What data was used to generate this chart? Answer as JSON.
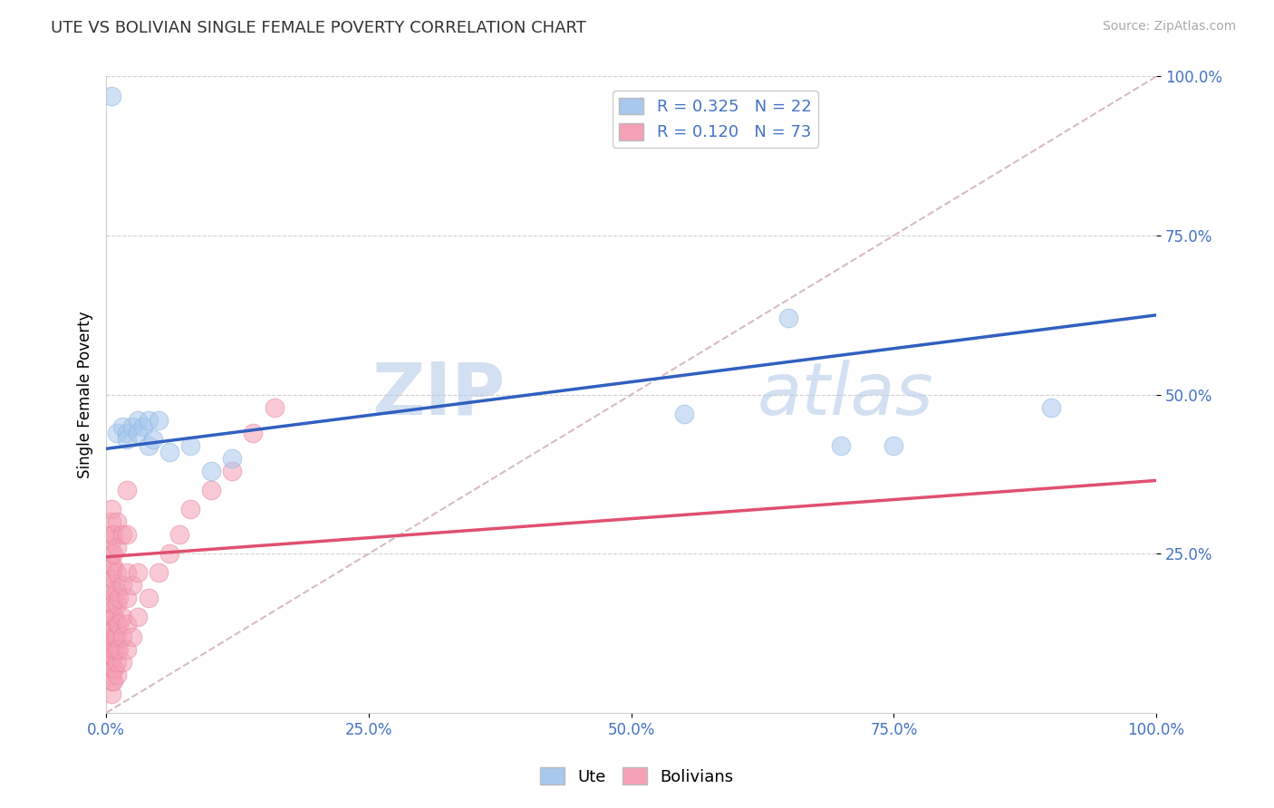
{
  "title": "UTE VS BOLIVIAN SINGLE FEMALE POVERTY CORRELATION CHART",
  "source_text": "Source: ZipAtlas.com",
  "ylabel": "Single Female Poverty",
  "watermark_zip": "ZIP",
  "watermark_atlas": "atlas",
  "xlim": [
    0.0,
    1.0
  ],
  "ylim": [
    0.0,
    1.0
  ],
  "xticks": [
    0.0,
    0.25,
    0.5,
    0.75,
    1.0
  ],
  "yticks": [
    0.25,
    0.5,
    0.75,
    1.0
  ],
  "xtick_labels": [
    "0.0%",
    "25.0%",
    "50.0%",
    "75.0%",
    "100.0%"
  ],
  "ytick_labels": [
    "25.0%",
    "50.0%",
    "75.0%",
    "100.0%"
  ],
  "ute_color": "#A8C8EE",
  "bolivian_color": "#F5A0B5",
  "ute_edge_color": "#90B8E0",
  "bolivian_edge_color": "#E888A0",
  "ute_line_color": "#3060C0",
  "bolivian_line_color": "#E05070",
  "diagonal_color": "#D0B0B8",
  "R_ute": 0.325,
  "N_ute": 22,
  "R_bolivian": 0.12,
  "N_bolivian": 73,
  "ute_x": [
    0.005,
    0.01,
    0.015,
    0.02,
    0.02,
    0.025,
    0.03,
    0.03,
    0.035,
    0.04,
    0.04,
    0.045,
    0.05,
    0.06,
    0.08,
    0.1,
    0.12,
    0.55,
    0.65,
    0.7,
    0.75,
    0.9
  ],
  "ute_y": [
    0.97,
    0.44,
    0.45,
    0.44,
    0.43,
    0.45,
    0.46,
    0.44,
    0.45,
    0.46,
    0.42,
    0.43,
    0.46,
    0.41,
    0.42,
    0.38,
    0.4,
    0.47,
    0.62,
    0.42,
    0.42,
    0.48
  ],
  "bolivian_x": [
    0.005,
    0.005,
    0.005,
    0.005,
    0.005,
    0.005,
    0.005,
    0.005,
    0.005,
    0.005,
    0.005,
    0.005,
    0.005,
    0.005,
    0.005,
    0.005,
    0.005,
    0.005,
    0.005,
    0.005,
    0.007,
    0.007,
    0.007,
    0.007,
    0.007,
    0.007,
    0.007,
    0.007,
    0.007,
    0.007,
    0.007,
    0.007,
    0.008,
    0.008,
    0.008,
    0.008,
    0.01,
    0.01,
    0.01,
    0.01,
    0.01,
    0.01,
    0.01,
    0.01,
    0.01,
    0.01,
    0.012,
    0.012,
    0.012,
    0.015,
    0.015,
    0.015,
    0.015,
    0.015,
    0.02,
    0.02,
    0.02,
    0.02,
    0.02,
    0.02,
    0.025,
    0.025,
    0.03,
    0.03,
    0.04,
    0.05,
    0.06,
    0.07,
    0.08,
    0.1,
    0.12,
    0.14,
    0.16
  ],
  "bolivian_y": [
    0.03,
    0.05,
    0.06,
    0.08,
    0.09,
    0.1,
    0.11,
    0.12,
    0.14,
    0.15,
    0.17,
    0.18,
    0.2,
    0.22,
    0.23,
    0.25,
    0.27,
    0.28,
    0.3,
    0.32,
    0.05,
    0.07,
    0.09,
    0.11,
    0.13,
    0.15,
    0.17,
    0.19,
    0.21,
    0.23,
    0.25,
    0.28,
    0.07,
    0.1,
    0.12,
    0.15,
    0.06,
    0.08,
    0.1,
    0.12,
    0.14,
    0.17,
    0.19,
    0.22,
    0.26,
    0.3,
    0.1,
    0.14,
    0.18,
    0.08,
    0.12,
    0.15,
    0.2,
    0.28,
    0.1,
    0.14,
    0.18,
    0.22,
    0.28,
    0.35,
    0.12,
    0.2,
    0.15,
    0.22,
    0.18,
    0.22,
    0.25,
    0.28,
    0.32,
    0.35,
    0.38,
    0.44,
    0.48
  ],
  "ute_line_x0": 0.0,
  "ute_line_x1": 1.0,
  "ute_line_y0": 0.415,
  "ute_line_y1": 0.625,
  "bolivian_line_x0": 0.0,
  "bolivian_line_x1": 1.0,
  "bolivian_line_y0": 0.245,
  "bolivian_line_y1": 0.365
}
